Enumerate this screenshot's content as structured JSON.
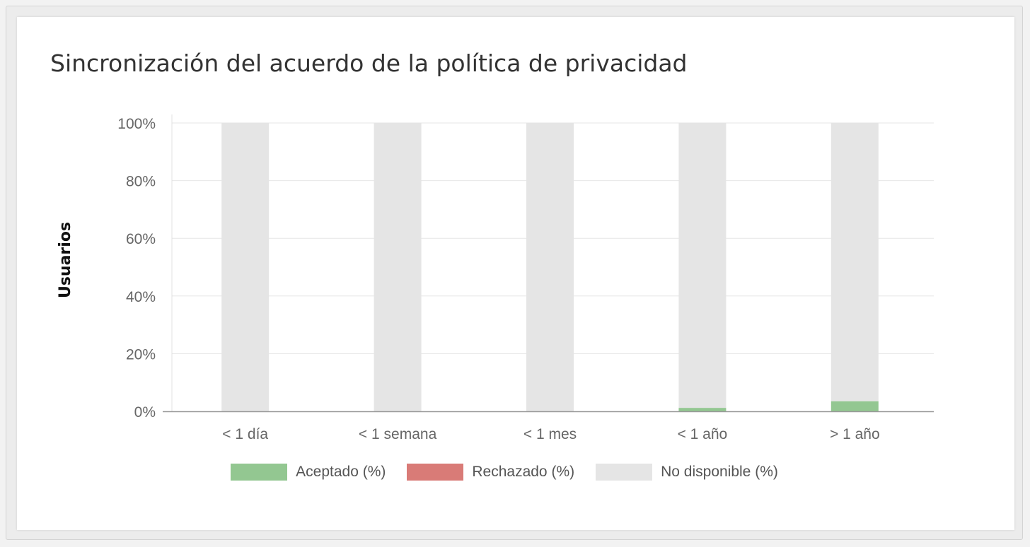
{
  "title": "Sincronización del acuerdo de la política de privacidad",
  "chart_data": {
    "type": "bar",
    "stacked": true,
    "categories": [
      "< 1 día",
      "< 1 semana",
      "< 1 mes",
      "< 1 año",
      "> 1 año"
    ],
    "series": [
      {
        "name": "Aceptado (%)",
        "color": "#93c791",
        "values": [
          0,
          0,
          0,
          1.2,
          3.5
        ]
      },
      {
        "name": "Rechazado (%)",
        "color": "#d97b77",
        "values": [
          0,
          0,
          0,
          0,
          0
        ]
      },
      {
        "name": "No disponible (%)",
        "color": "#e5e5e5",
        "values": [
          100,
          100,
          100,
          98.8,
          96.5
        ]
      }
    ],
    "ylabel": "Usuarios",
    "xlabel": "",
    "ylim": [
      0,
      100
    ],
    "yticks": [
      "0%",
      "20%",
      "40%",
      "60%",
      "80%",
      "100%"
    ],
    "grid": true,
    "legend_position": "bottom"
  }
}
